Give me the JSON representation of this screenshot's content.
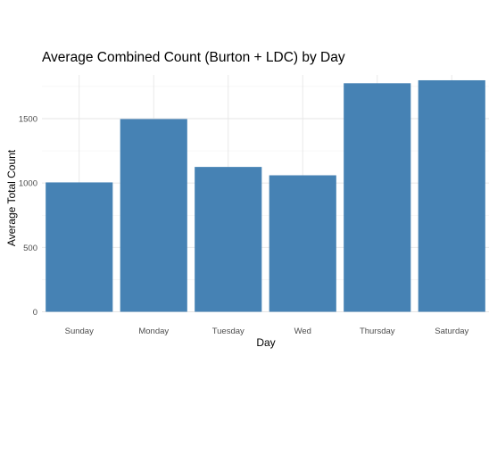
{
  "chart_data": {
    "type": "bar",
    "title": "Average Combined Count (Burton + LDC) by Day",
    "xlabel": "Day",
    "ylabel": "Average Total Count",
    "categories": [
      "Sunday",
      "Monday",
      "Tuesday",
      "Wed",
      "Thursday",
      "Saturday"
    ],
    "values": [
      1005,
      1497,
      1125,
      1060,
      1775,
      1798
    ],
    "ylim": [
      0,
      1850
    ],
    "yticks": [
      0,
      500,
      1000,
      1500
    ],
    "grid": true,
    "legend": "none",
    "bar_color": "#4682B4"
  }
}
